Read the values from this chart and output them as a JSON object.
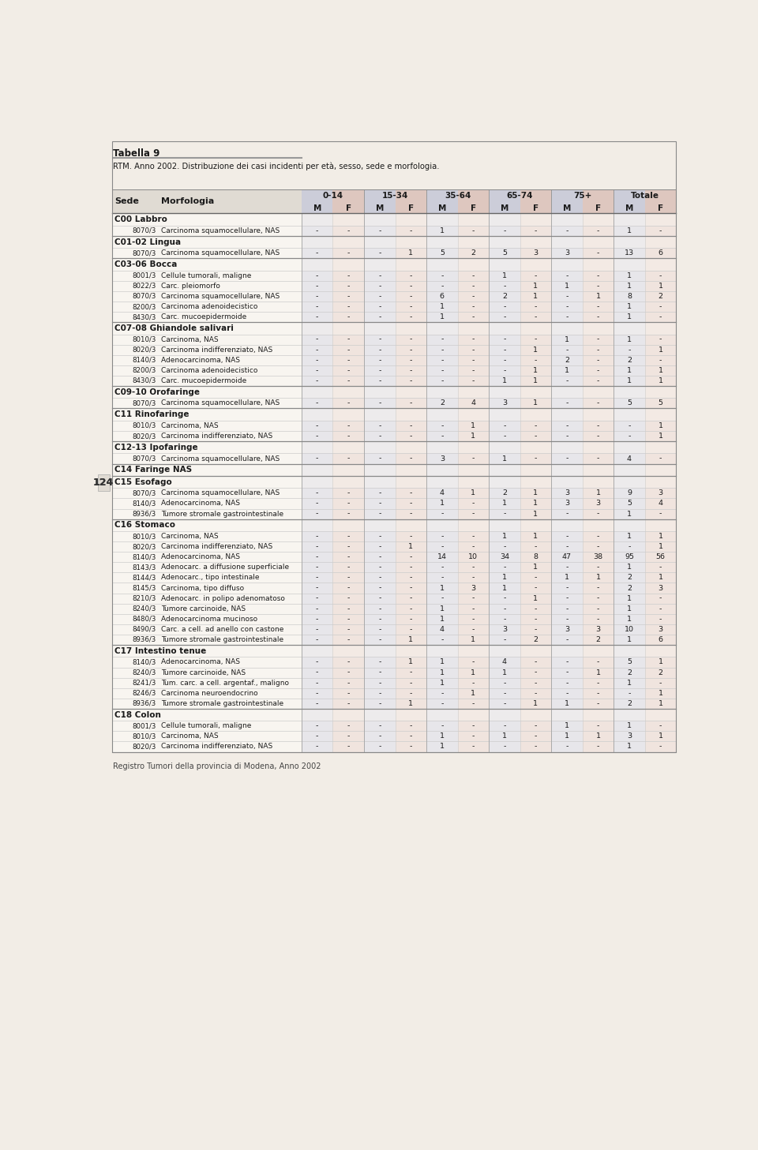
{
  "title": "Tabella 9",
  "subtitle": "RTM. Anno 2002. Distribuzione dei casi incidenti per età, sesso, sede e morfologia.",
  "footer": "Registro Tumori della provincia di Modena, Anno 2002",
  "page_num": "124",
  "col_groups": [
    "0-14",
    "15-34",
    "35-64",
    "65-74",
    "75+",
    "Totale"
  ],
  "bg_color": "#f2ede6",
  "header_bg": "#e0dbd3",
  "male_bg": "#bcc2de",
  "female_bg": "#deb8b0",
  "table_bg": "#f8f5f0",
  "rows": [
    {
      "type": "section",
      "label": "C00 Labbro"
    },
    {
      "type": "data",
      "code": "8070/3",
      "label": "Carcinoma squamocellulare, NAS",
      "v": [
        "-",
        "-",
        "-",
        "-",
        "1",
        "-",
        "-",
        "-",
        "-",
        "-",
        "1",
        "-"
      ]
    },
    {
      "type": "section",
      "label": "C01-02 Lingua"
    },
    {
      "type": "data",
      "code": "8070/3",
      "label": "Carcinoma squamocellulare, NAS",
      "v": [
        "-",
        "-",
        "-",
        "1",
        "5",
        "2",
        "5",
        "3",
        "3",
        "-",
        "13",
        "6"
      ]
    },
    {
      "type": "section",
      "label": "C03-06 Bocca"
    },
    {
      "type": "data",
      "code": "8001/3",
      "label": "Cellule tumorali, maligne",
      "v": [
        "-",
        "-",
        "-",
        "-",
        "-",
        "-",
        "1",
        "-",
        "-",
        "-",
        "1",
        "-"
      ]
    },
    {
      "type": "data",
      "code": "8022/3",
      "label": "Carc. pleiomorfo",
      "v": [
        "-",
        "-",
        "-",
        "-",
        "-",
        "-",
        "-",
        "1",
        "1",
        "-",
        "1",
        "1"
      ]
    },
    {
      "type": "data",
      "code": "8070/3",
      "label": "Carcinoma squamocellulare, NAS",
      "v": [
        "-",
        "-",
        "-",
        "-",
        "6",
        "-",
        "2",
        "1",
        "-",
        "1",
        "8",
        "2"
      ]
    },
    {
      "type": "data",
      "code": "8200/3",
      "label": "Carcinoma adenoidecistico",
      "v": [
        "-",
        "-",
        "-",
        "-",
        "1",
        "-",
        "-",
        "-",
        "-",
        "-",
        "1",
        "-"
      ]
    },
    {
      "type": "data",
      "code": "8430/3",
      "label": "Carc. mucoepidermoide",
      "v": [
        "-",
        "-",
        "-",
        "-",
        "1",
        "-",
        "-",
        "-",
        "-",
        "-",
        "1",
        "-"
      ]
    },
    {
      "type": "section",
      "label": "C07-08 Ghiandole salivari"
    },
    {
      "type": "data",
      "code": "8010/3",
      "label": "Carcinoma, NAS",
      "v": [
        "-",
        "-",
        "-",
        "-",
        "-",
        "-",
        "-",
        "-",
        "1",
        "-",
        "1",
        "-"
      ]
    },
    {
      "type": "data",
      "code": "8020/3",
      "label": "Carcinoma indifferenziato, NAS",
      "v": [
        "-",
        "-",
        "-",
        "-",
        "-",
        "-",
        "-",
        "1",
        "-",
        "-",
        "-",
        "1"
      ]
    },
    {
      "type": "data",
      "code": "8140/3",
      "label": "Adenocarcinoma, NAS",
      "v": [
        "-",
        "-",
        "-",
        "-",
        "-",
        "-",
        "-",
        "-",
        "2",
        "-",
        "2",
        "-"
      ]
    },
    {
      "type": "data",
      "code": "8200/3",
      "label": "Carcinoma adenoidecistico",
      "v": [
        "-",
        "-",
        "-",
        "-",
        "-",
        "-",
        "-",
        "1",
        "1",
        "-",
        "1",
        "1"
      ]
    },
    {
      "type": "data",
      "code": "8430/3",
      "label": "Carc. mucoepidermoide",
      "v": [
        "-",
        "-",
        "-",
        "-",
        "-",
        "-",
        "1",
        "1",
        "-",
        "-",
        "1",
        "1"
      ]
    },
    {
      "type": "section",
      "label": "C09-10 Orofaringe"
    },
    {
      "type": "data",
      "code": "8070/3",
      "label": "Carcinoma squamocellulare, NAS",
      "v": [
        "-",
        "-",
        "-",
        "-",
        "2",
        "4",
        "3",
        "1",
        "-",
        "-",
        "5",
        "5"
      ]
    },
    {
      "type": "section",
      "label": "C11 Rinofaringe"
    },
    {
      "type": "data",
      "code": "8010/3",
      "label": "Carcinoma, NAS",
      "v": [
        "-",
        "-",
        "-",
        "-",
        "-",
        "1",
        "-",
        "-",
        "-",
        "-",
        "-",
        "1"
      ]
    },
    {
      "type": "data",
      "code": "8020/3",
      "label": "Carcinoma indifferenziato, NAS",
      "v": [
        "-",
        "-",
        "-",
        "-",
        "-",
        "1",
        "-",
        "-",
        "-",
        "-",
        "-",
        "1"
      ]
    },
    {
      "type": "section",
      "label": "C12-13 Ipofaringe"
    },
    {
      "type": "data",
      "code": "8070/3",
      "label": "Carcinoma squamocellulare, NAS",
      "v": [
        "-",
        "-",
        "-",
        "-",
        "3",
        "-",
        "1",
        "-",
        "-",
        "-",
        "4",
        "-"
      ]
    },
    {
      "type": "section",
      "label": "C14 Faringe NAS"
    },
    {
      "type": "section",
      "label": "C15 Esofago"
    },
    {
      "type": "data",
      "code": "8070/3",
      "label": "Carcinoma squamocellulare, NAS",
      "v": [
        "-",
        "-",
        "-",
        "-",
        "4",
        "1",
        "2",
        "1",
        "3",
        "1",
        "9",
        "3"
      ]
    },
    {
      "type": "data",
      "code": "8140/3",
      "label": "Adenocarcinoma, NAS",
      "v": [
        "-",
        "-",
        "-",
        "-",
        "1",
        "-",
        "1",
        "1",
        "3",
        "3",
        "5",
        "4"
      ]
    },
    {
      "type": "data",
      "code": "8936/3",
      "label": "Tumore stromale gastrointestinale",
      "v": [
        "-",
        "-",
        "-",
        "-",
        "-",
        "-",
        "-",
        "1",
        "-",
        "-",
        "1",
        "-"
      ]
    },
    {
      "type": "section",
      "label": "C16 Stomaco"
    },
    {
      "type": "data",
      "code": "8010/3",
      "label": "Carcinoma, NAS",
      "v": [
        "-",
        "-",
        "-",
        "-",
        "-",
        "-",
        "1",
        "1",
        "-",
        "-",
        "1",
        "1"
      ]
    },
    {
      "type": "data",
      "code": "8020/3",
      "label": "Carcinoma indifferenziato, NAS",
      "v": [
        "-",
        "-",
        "-",
        "1",
        "-",
        "-",
        "-",
        "-",
        "-",
        "-",
        "-",
        "1"
      ]
    },
    {
      "type": "data",
      "code": "8140/3",
      "label": "Adenocarcinoma, NAS",
      "v": [
        "-",
        "-",
        "-",
        "-",
        "14",
        "10",
        "34",
        "8",
        "47",
        "38",
        "95",
        "56"
      ]
    },
    {
      "type": "data",
      "code": "8143/3",
      "label": "Adenocarc. a diffusione superficiale",
      "v": [
        "-",
        "-",
        "-",
        "-",
        "-",
        "-",
        "-",
        "1",
        "-",
        "-",
        "1",
        "-"
      ]
    },
    {
      "type": "data",
      "code": "8144/3",
      "label": "Adenocarc., tipo intestinale",
      "v": [
        "-",
        "-",
        "-",
        "-",
        "-",
        "-",
        "1",
        "-",
        "1",
        "1",
        "2",
        "1"
      ]
    },
    {
      "type": "data",
      "code": "8145/3",
      "label": "Carcinoma, tipo diffuso",
      "v": [
        "-",
        "-",
        "-",
        "-",
        "1",
        "3",
        "1",
        "-",
        "-",
        "-",
        "2",
        "3"
      ]
    },
    {
      "type": "data",
      "code": "8210/3",
      "label": "Adenocarc. in polipo adenomatoso",
      "v": [
        "-",
        "-",
        "-",
        "-",
        "-",
        "-",
        "-",
        "1",
        "-",
        "-",
        "1",
        "-"
      ]
    },
    {
      "type": "data",
      "code": "8240/3",
      "label": "Tumore carcinoide, NAS",
      "v": [
        "-",
        "-",
        "-",
        "-",
        "1",
        "-",
        "-",
        "-",
        "-",
        "-",
        "1",
        "-"
      ]
    },
    {
      "type": "data",
      "code": "8480/3",
      "label": "Adenocarcinoma mucinoso",
      "v": [
        "-",
        "-",
        "-",
        "-",
        "1",
        "-",
        "-",
        "-",
        "-",
        "-",
        "1",
        "-"
      ]
    },
    {
      "type": "data",
      "code": "8490/3",
      "label": "Carc. a cell. ad anello con castone",
      "v": [
        "-",
        "-",
        "-",
        "-",
        "4",
        "-",
        "3",
        "-",
        "3",
        "3",
        "10",
        "3"
      ]
    },
    {
      "type": "data",
      "code": "8936/3",
      "label": "Tumore stromale gastrointestinale",
      "v": [
        "-",
        "-",
        "-",
        "1",
        "-",
        "1",
        "-",
        "2",
        "-",
        "2",
        "1",
        "6"
      ]
    },
    {
      "type": "section",
      "label": "C17 Intestino tenue"
    },
    {
      "type": "data",
      "code": "8140/3",
      "label": "Adenocarcinoma, NAS",
      "v": [
        "-",
        "-",
        "-",
        "1",
        "1",
        "-",
        "4",
        "-",
        "-",
        "-",
        "5",
        "1"
      ]
    },
    {
      "type": "data",
      "code": "8240/3",
      "label": "Tumore carcinoide, NAS",
      "v": [
        "-",
        "-",
        "-",
        "-",
        "1",
        "1",
        "1",
        "-",
        "-",
        "1",
        "2",
        "2"
      ]
    },
    {
      "type": "data",
      "code": "8241/3",
      "label": "Tum. carc. a cell. argentaf., maligno",
      "v": [
        "-",
        "-",
        "-",
        "-",
        "1",
        "-",
        "-",
        "-",
        "-",
        "-",
        "1",
        "-"
      ]
    },
    {
      "type": "data",
      "code": "8246/3",
      "label": "Carcinoma neuroendocrino",
      "v": [
        "-",
        "-",
        "-",
        "-",
        "-",
        "1",
        "-",
        "-",
        "-",
        "-",
        "-",
        "1"
      ]
    },
    {
      "type": "data",
      "code": "8936/3",
      "label": "Tumore stromale gastrointestinale",
      "v": [
        "-",
        "-",
        "-",
        "1",
        "-",
        "-",
        "-",
        "1",
        "1",
        "-",
        "2",
        "1"
      ]
    },
    {
      "type": "section",
      "label": "C18 Colon"
    },
    {
      "type": "data",
      "code": "8001/3",
      "label": "Cellule tumorali, maligne",
      "v": [
        "-",
        "-",
        "-",
        "-",
        "-",
        "-",
        "-",
        "-",
        "1",
        "-",
        "1",
        "-"
      ]
    },
    {
      "type": "data",
      "code": "8010/3",
      "label": "Carcinoma, NAS",
      "v": [
        "-",
        "-",
        "-",
        "-",
        "1",
        "-",
        "1",
        "-",
        "1",
        "1",
        "3",
        "1"
      ]
    },
    {
      "type": "data",
      "code": "8020/3",
      "label": "Carcinoma indifferenziato, NAS",
      "v": [
        "-",
        "-",
        "-",
        "-",
        "1",
        "-",
        "-",
        "-",
        "-",
        "-",
        "1",
        "-"
      ]
    }
  ]
}
